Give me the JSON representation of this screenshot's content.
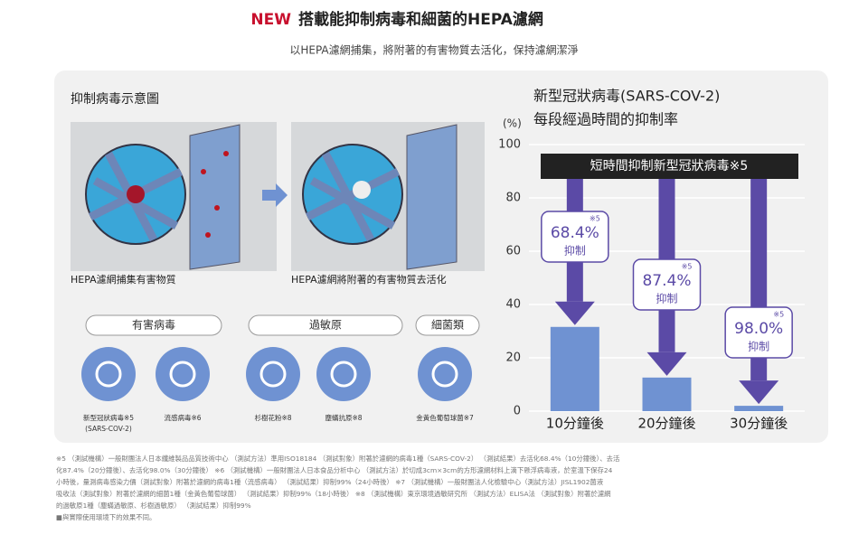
{
  "header": {
    "badge": "NEW",
    "title": "搭載能抑制病毒和細菌的HEPA濾網",
    "subtitle": "以HEPA濾網捕集，將附著的有害物質去活化，保持濾網潔淨"
  },
  "diagram": {
    "title": "抑制病毒示意圖",
    "captions": [
      "HEPA濾網捕集有害物質",
      "HEPA濾網將附著的有害物質去活化"
    ],
    "groups": [
      "有害病毒",
      "過敏原",
      "細菌類"
    ],
    "icons": [
      {
        "label": "新型冠狀病毒※5",
        "sub": "(SARS-COV-2)"
      },
      {
        "label": "流感病毒※6"
      },
      {
        "label": "杉樹花粉※8"
      },
      {
        "label": "塵蟎抗原※8"
      },
      {
        "label": "金黃色葡萄球菌※7"
      }
    ]
  },
  "chart_data": {
    "type": "bar",
    "title": "新型冠狀病毒(SARS-COV-2)",
    "subtitle": "每段經過時間的抑制率",
    "y_label": "(%)",
    "banner": "短時間抑制新型冠狀病毒※5",
    "categories": [
      "10分鐘後",
      "20分鐘後",
      "30分鐘後"
    ],
    "values": [
      31.6,
      12.6,
      2.0
    ],
    "color": "#6f92d2",
    "annotations": [
      {
        "text": "68.4%",
        "sub": "抑制",
        "note": "※5"
      },
      {
        "text": "87.4%",
        "sub": "抑制",
        "note": "※5"
      },
      {
        "text": "98.0%",
        "sub": "抑制",
        "note": "※5"
      }
    ],
    "ylim": [
      0,
      100
    ],
    "yticks": [
      0,
      20,
      40,
      60,
      80,
      100
    ],
    "grid": true
  },
  "footnotes": [
    "※5 （測試機構）一般財團法人日本纖維製品品質技術中心 （測試方法）準用ISO18184 （測試對象）附著於濾網的病毒1種（SARS-COV-2） （測試結果）去活化68.4%（10分鐘後）、去活",
    "化87.4%（20分鐘後）、去活化98.0%（30分鐘後）  ※6 （測試機構）一般財團法人日本食品分析中心 （測試方法）於切成3cm×3cm的方形濾網材料上滴下懸浮病毒液，於室溫下保存24",
    "小時後，量測病毒感染力價（測試對象）附著於濾網的病毒1種（流感病毒） （測試結果）抑制99%（24小時後）  ※7 （測試機構）一般財團法人化檢驗中心（測試方法）JISL1902菌液",
    "吸收法（測試對象）附著於濾網的細菌1種（金黃色葡萄球菌） （測試結果）抑制99%（18小時後）  ※8 （測試機構）東京環境過敏研究所 （測試方法）ELISA法 （測試對象）附著於濾網",
    "的過敏原1種（塵蟎過敏原、杉樹過敏原） （測試結果）抑制99%",
    "■與實際使用環境下的效果不同。"
  ]
}
